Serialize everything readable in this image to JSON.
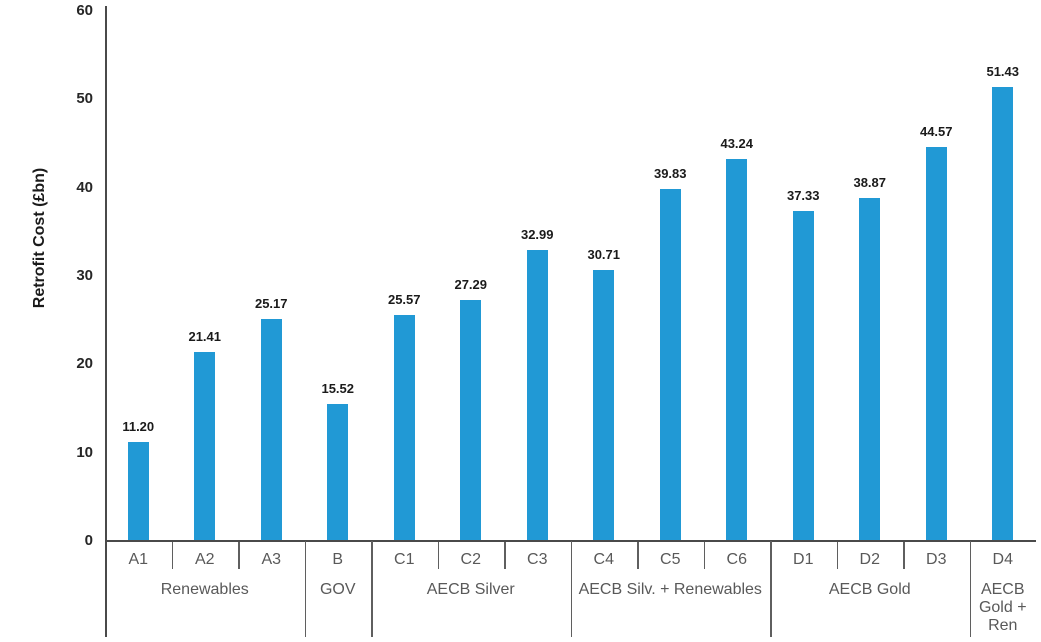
{
  "chart_data": {
    "type": "bar",
    "title": "",
    "xlabel": "",
    "ylabel": "Retrofit Cost (£bn)",
    "ylim": [
      0,
      60
    ],
    "yticks": [
      "0",
      "10",
      "20",
      "30",
      "40",
      "50",
      "60"
    ],
    "grid": false,
    "legend": false,
    "categories": [
      "A1",
      "A2",
      "A3",
      "B",
      "C1",
      "C2",
      "C3",
      "C4",
      "C5",
      "C6",
      "D1",
      "D2",
      "D3",
      "D4"
    ],
    "values": [
      11.2,
      21.41,
      25.17,
      15.52,
      25.57,
      27.29,
      32.99,
      30.71,
      39.83,
      43.24,
      37.33,
      38.87,
      44.57,
      51.43
    ],
    "value_labels": [
      "11.20",
      "21.41",
      "25.17",
      "15.52",
      "25.57",
      "27.29",
      "32.99",
      "30.71",
      "39.83",
      "43.24",
      "37.33",
      "38.87",
      "44.57",
      "51.43"
    ],
    "groups": [
      {
        "label": "Renewables",
        "count": 3
      },
      {
        "label": "GOV",
        "count": 1
      },
      {
        "label": "AECB Silver",
        "count": 3
      },
      {
        "label": "AECB Silv. + Renewables",
        "count": 3
      },
      {
        "label": "AECB Gold",
        "count": 3
      },
      {
        "label": "AECB Gold + Ren",
        "count": 1
      }
    ],
    "colors": {
      "bar": "#2199D5",
      "axis_line": "#4a4a4a",
      "divider_line": "#5f5f5f",
      "tick_label": "#262626",
      "data_label": "#1a1a1a",
      "category_label": "#595959"
    }
  }
}
